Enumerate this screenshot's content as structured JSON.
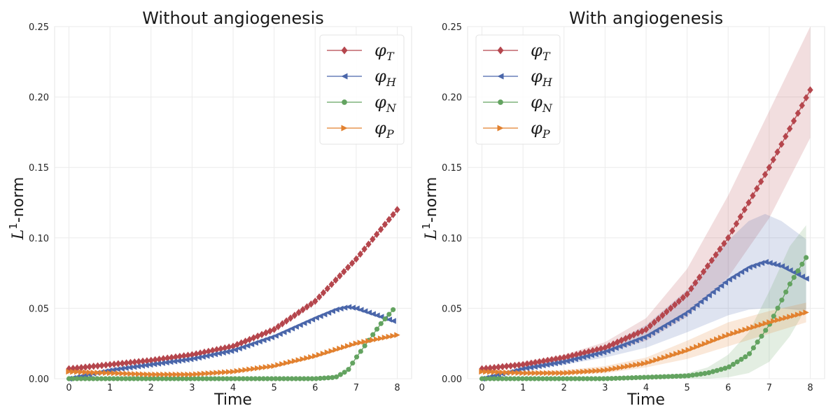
{
  "chart_data": [
    {
      "type": "line",
      "title": "Without angiogenesis",
      "xlabel": "Time",
      "ylabel_base": "L",
      "ylabel_sup": "1",
      "ylabel_rest": "-norm",
      "xlim": [
        -0.35,
        8.35
      ],
      "ylim": [
        0,
        0.25
      ],
      "xticks": [
        0,
        1,
        2,
        3,
        4,
        5,
        6,
        7,
        8
      ],
      "yticks": [
        0.0,
        0.05,
        0.1,
        0.15,
        0.2,
        0.25
      ],
      "ytick_labels": [
        "0.00",
        "0.05",
        "0.10",
        "0.15",
        "0.20",
        "0.25"
      ],
      "grid": true,
      "legend_position": "top-right",
      "series": [
        {
          "name": "φ",
          "name_sub": "T",
          "marker": "diamond",
          "color": "#b5464d",
          "x": [
            0,
            1,
            2,
            3,
            4,
            5,
            6,
            7,
            8
          ],
          "y": [
            0.007,
            0.01,
            0.013,
            0.017,
            0.023,
            0.035,
            0.055,
            0.085,
            0.12
          ]
        },
        {
          "name": "φ",
          "name_sub": "H",
          "marker": "triangle-left",
          "color": "#4a66aa",
          "x": [
            0,
            1,
            2,
            3,
            4,
            5,
            6,
            6.5,
            6.8,
            7,
            7.5,
            7.9
          ],
          "y": [
            0.0,
            0.006,
            0.01,
            0.014,
            0.02,
            0.03,
            0.043,
            0.049,
            0.051,
            0.05,
            0.045,
            0.041
          ]
        },
        {
          "name": "φ",
          "name_sub": "N",
          "marker": "circle",
          "color": "#63a360",
          "x": [
            0,
            1,
            2,
            3,
            4,
            5,
            6,
            6.5,
            6.8,
            7,
            7.3,
            7.6,
            7.9
          ],
          "y": [
            0,
            0,
            0,
            0,
            0,
            0,
            0.0,
            0.001,
            0.006,
            0.015,
            0.027,
            0.039,
            0.049
          ]
        },
        {
          "name": "φ",
          "name_sub": "P",
          "marker": "triangle-right",
          "color": "#e2812f",
          "x": [
            0,
            1,
            2,
            3,
            4,
            5,
            6,
            7,
            8
          ],
          "y": [
            0.005,
            0.004,
            0.003,
            0.003,
            0.005,
            0.009,
            0.016,
            0.025,
            0.031
          ]
        }
      ]
    },
    {
      "type": "line",
      "title": "With angiogenesis",
      "xlabel": "Time",
      "ylabel_base": "L",
      "ylabel_sup": "1",
      "ylabel_rest": "-norm",
      "xlim": [
        -0.35,
        8.35
      ],
      "ylim": [
        0,
        0.25
      ],
      "xticks": [
        0,
        1,
        2,
        3,
        4,
        5,
        6,
        7,
        8
      ],
      "yticks": [
        0.0,
        0.05,
        0.1,
        0.15,
        0.2,
        0.25
      ],
      "ytick_labels": [
        "0.00",
        "0.05",
        "0.10",
        "0.15",
        "0.20",
        "0.25"
      ],
      "grid": true,
      "legend_position": "top-left",
      "series": [
        {
          "name": "φ",
          "name_sub": "T",
          "marker": "diamond",
          "color": "#b5464d",
          "x": [
            0,
            1,
            2,
            3,
            4,
            5,
            6,
            7,
            8
          ],
          "y": [
            0.007,
            0.01,
            0.015,
            0.022,
            0.035,
            0.06,
            0.1,
            0.15,
            0.205
          ],
          "band_lower": [
            0.006,
            0.009,
            0.013,
            0.018,
            0.027,
            0.044,
            0.072,
            0.114,
            0.171
          ],
          "band_upper": [
            0.008,
            0.012,
            0.017,
            0.026,
            0.043,
            0.078,
            0.13,
            0.19,
            0.25
          ]
        },
        {
          "name": "φ",
          "name_sub": "H",
          "marker": "triangle-left",
          "color": "#4a66aa",
          "x": [
            0,
            1,
            2,
            3,
            4,
            5,
            6,
            6.5,
            6.9,
            7.3,
            7.9
          ],
          "y": [
            0.0,
            0.007,
            0.012,
            0.019,
            0.03,
            0.047,
            0.07,
            0.079,
            0.083,
            0.08,
            0.071
          ],
          "band_lower": [
            0.0,
            0.006,
            0.01,
            0.015,
            0.022,
            0.033,
            0.045,
            0.049,
            0.05,
            0.05,
            0.048
          ],
          "band_upper": [
            0.0,
            0.008,
            0.014,
            0.023,
            0.038,
            0.063,
            0.098,
            0.112,
            0.117,
            0.112,
            0.099
          ]
        },
        {
          "name": "φ",
          "name_sub": "N",
          "marker": "circle",
          "color": "#63a360",
          "x": [
            0,
            1,
            2,
            3,
            4,
            5,
            5.5,
            6,
            6.5,
            7,
            7.5,
            7.9
          ],
          "y": [
            0,
            0,
            0,
            0,
            0.001,
            0.002,
            0.004,
            0.008,
            0.017,
            0.038,
            0.067,
            0.086
          ],
          "band_lower": [
            0,
            0,
            0,
            0,
            0.0,
            0.0,
            0.0,
            0.001,
            0.004,
            0.012,
            0.03,
            0.05
          ],
          "band_upper": [
            0,
            0,
            0,
            0,
            0.002,
            0.004,
            0.008,
            0.017,
            0.033,
            0.062,
            0.094,
            0.109
          ]
        },
        {
          "name": "φ",
          "name_sub": "P",
          "marker": "triangle-right",
          "color": "#e2812f",
          "x": [
            0,
            1,
            2,
            3,
            4,
            5,
            6,
            7,
            7.9
          ],
          "y": [
            0.005,
            0.004,
            0.004,
            0.006,
            0.011,
            0.02,
            0.031,
            0.04,
            0.047
          ],
          "band_lower": [
            0.005,
            0.004,
            0.003,
            0.004,
            0.008,
            0.014,
            0.023,
            0.032,
            0.04
          ],
          "band_upper": [
            0.005,
            0.005,
            0.006,
            0.009,
            0.015,
            0.027,
            0.04,
            0.048,
            0.054
          ]
        }
      ]
    }
  ]
}
